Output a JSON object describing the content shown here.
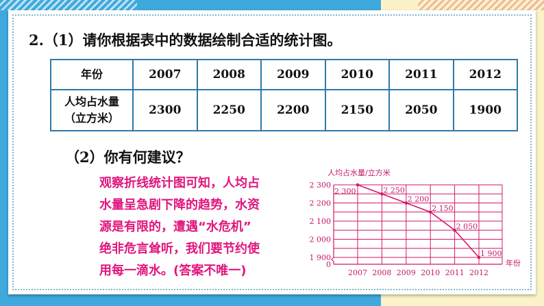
{
  "question": {
    "part1": "2.（1）请你根据表中的数据绘制合适的统计图。",
    "part2": "（2）你有何建议？"
  },
  "table": {
    "header": [
      "年份",
      "2007",
      "2008",
      "2009",
      "2010",
      "2011",
      "2012"
    ],
    "row_label_line1": "人均占水量",
    "row_label_line2": "（立方米）",
    "values": [
      "2300",
      "2250",
      "2200",
      "2150",
      "2050",
      "1900"
    ]
  },
  "answer": [
    "观察折线统计图可知，人均占",
    "水量呈急剧下降的趋势，水资",
    "源是有限的，遭遇“水危机”",
    "绝非危言耸听，我们要节约使",
    "用每一滴水。(答案不唯一)"
  ],
  "chart_data": {
    "type": "line",
    "title": "人均占水量/立方米",
    "xlabel": "年份",
    "ylabel": "",
    "categories": [
      "2007",
      "2008",
      "2009",
      "2010",
      "2011",
      "2012"
    ],
    "values": [
      2300,
      2250,
      2200,
      2150,
      2050,
      1900
    ],
    "data_labels": [
      "2 300",
      "2 250",
      "2 200",
      "2 150",
      "2 050",
      "1 900"
    ],
    "yticks": [
      "0",
      "1 900",
      "2 000",
      "2 100",
      "2 200",
      "2 300"
    ],
    "ylim": [
      1900,
      2300
    ],
    "axis_break": true,
    "grid": true,
    "color": "#d4166b"
  }
}
